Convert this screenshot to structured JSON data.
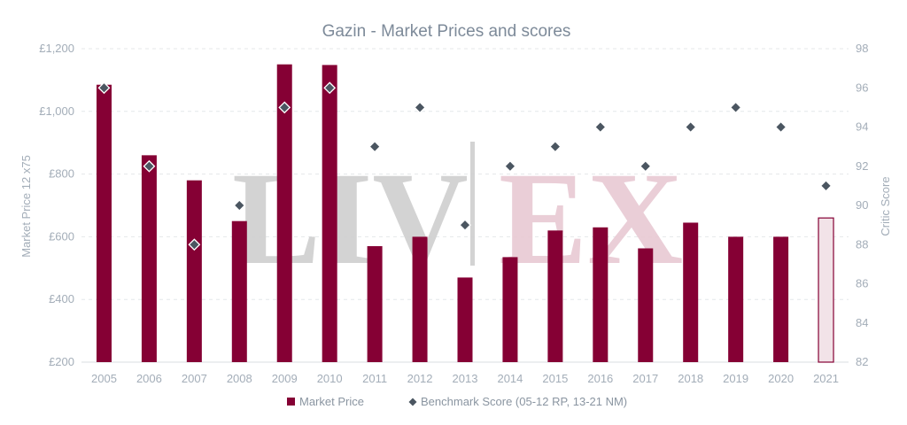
{
  "colors": {
    "bar": "#850034",
    "bar_estimate_fill": "#f2e3e8",
    "marker": "#4b5661",
    "marker_stroke": "#ffffff",
    "watermark_grey": "#cfcfcf",
    "watermark_pink": "#e8c9d3"
  },
  "watermark": {
    "left": "LIV",
    "right": "EX"
  },
  "chart_data": {
    "type": "bar",
    "title": "Gazin - Market Prices and scores",
    "categories": [
      "2005",
      "2006",
      "2007",
      "2008",
      "2009",
      "2010",
      "2011",
      "2012",
      "2013",
      "2014",
      "2015",
      "2016",
      "2017",
      "2018",
      "2019",
      "2020",
      "2021"
    ],
    "series": [
      {
        "name": "Market Price",
        "type": "bar",
        "axis": "left",
        "values": [
          1085,
          860,
          780,
          650,
          1150,
          1148,
          570,
          600,
          470,
          535,
          620,
          630,
          563,
          645,
          600,
          600,
          660
        ],
        "outlined_categories": [
          "2021"
        ]
      },
      {
        "name": "Benchmark Score (05-12 RP, 13-21 NM)",
        "type": "scatter",
        "marker": "diamond",
        "axis": "right",
        "values": [
          96,
          92,
          88,
          90,
          95,
          96,
          93,
          95,
          89,
          92,
          93,
          94,
          92,
          94,
          95,
          94,
          91
        ]
      }
    ],
    "y_left": {
      "label": "Market Price 12 x75",
      "ylim": [
        200,
        1200
      ],
      "ticks": [
        200,
        400,
        600,
        800,
        1000,
        1200
      ],
      "tick_labels": [
        "£200",
        "£400",
        "£600",
        "£800",
        "£1,000",
        "£1,200"
      ]
    },
    "y_right": {
      "label": "Critic Score",
      "ylim": [
        82,
        98
      ],
      "ticks": [
        82,
        84,
        86,
        88,
        90,
        92,
        94,
        96,
        98
      ],
      "tick_labels": [
        "82",
        "84",
        "86",
        "88",
        "90",
        "92",
        "94",
        "96",
        "98"
      ]
    },
    "grid": true,
    "legend_position": "bottom"
  }
}
